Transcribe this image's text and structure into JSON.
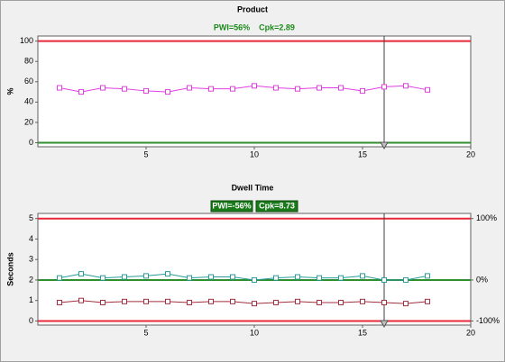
{
  "chart_data": [
    {
      "type": "line",
      "title": "Product",
      "annotations": [
        "PWI=56%",
        "Cpk=2.89"
      ],
      "annotation_style": "text",
      "ylabel": "%",
      "xlim": [
        0,
        20
      ],
      "xticks": [
        5,
        10,
        15,
        20
      ],
      "ylim": [
        -4,
        105
      ],
      "yticks": [
        0,
        20,
        40,
        60,
        80,
        100
      ],
      "limits": [
        {
          "value": 100,
          "color": "#e8283a"
        },
        {
          "value": 0,
          "color": "#2f8f2f"
        }
      ],
      "cursor_x": 16,
      "x": [
        1,
        2,
        3,
        4,
        5,
        6,
        7,
        8,
        9,
        10,
        11,
        12,
        13,
        14,
        15,
        16,
        17,
        18
      ],
      "series": [
        {
          "color": "#e040e0",
          "values": [
            54,
            50,
            54,
            53,
            51,
            50,
            54,
            53,
            53,
            56,
            54,
            53,
            54,
            54,
            51,
            55,
            56,
            52
          ]
        }
      ]
    },
    {
      "type": "line",
      "title": "Dwell Time",
      "annotations": [
        "PWI=-56%",
        "Cpk=8.73"
      ],
      "annotation_style": "badge",
      "ylabel": "Seconds",
      "xlim": [
        0,
        20
      ],
      "xticks": [
        5,
        10,
        15,
        20
      ],
      "ylim": [
        -0.2,
        5.25
      ],
      "yticks": [
        0,
        1,
        2,
        3,
        4,
        5
      ],
      "limits": [
        {
          "value": 5,
          "color": "#e8283a"
        },
        {
          "value": 2,
          "color": "#2f8f2f"
        },
        {
          "value": 0,
          "color": "#e8283a"
        }
      ],
      "cursor_x": 16,
      "y2ticks": [
        {
          "value": 100,
          "label": "100%"
        },
        {
          "value": 0,
          "label": "0%"
        },
        {
          "value": -100,
          "label": "-100%"
        }
      ],
      "x": [
        1,
        2,
        3,
        4,
        5,
        6,
        7,
        8,
        9,
        10,
        11,
        12,
        13,
        14,
        15,
        16,
        17,
        18
      ],
      "series": [
        {
          "color": "#2a9a9a",
          "values": [
            2.1,
            2.3,
            2.1,
            2.15,
            2.2,
            2.3,
            2.1,
            2.15,
            2.15,
            2.0,
            2.1,
            2.15,
            2.1,
            2.1,
            2.2,
            2.0,
            2.0,
            2.2
          ]
        },
        {
          "color": "#a03040",
          "values": [
            0.9,
            1.0,
            0.9,
            0.95,
            0.95,
            0.95,
            0.9,
            0.95,
            0.95,
            0.85,
            0.9,
            0.95,
            0.9,
            0.9,
            0.95,
            0.9,
            0.85,
            0.95
          ]
        }
      ]
    }
  ]
}
